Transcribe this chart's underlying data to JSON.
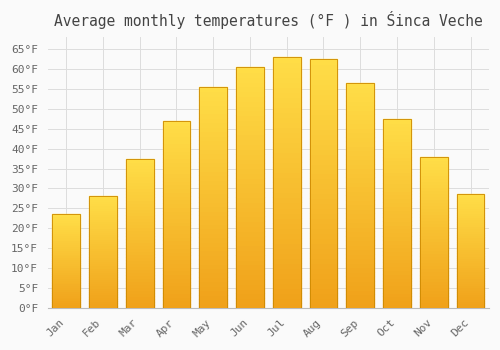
{
  "title": "Average monthly temperatures (°F ) in Śinca Veche",
  "months": [
    "Jan",
    "Feb",
    "Mar",
    "Apr",
    "May",
    "Jun",
    "Jul",
    "Aug",
    "Sep",
    "Oct",
    "Nov",
    "Dec"
  ],
  "values": [
    23.5,
    28.0,
    37.5,
    47.0,
    55.5,
    60.5,
    63.0,
    62.5,
    56.5,
    47.5,
    38.0,
    28.5
  ],
  "bar_color_bottom": "#F0A020",
  "bar_color_top": "#FFD84D",
  "bar_edge_color": "#CC8800",
  "background_color": "#FAFAFA",
  "grid_color": "#DDDDDD",
  "tick_label_color": "#666666",
  "title_color": "#444444",
  "ylim": [
    0,
    68
  ],
  "yticks": [
    0,
    5,
    10,
    15,
    20,
    25,
    30,
    35,
    40,
    45,
    50,
    55,
    60,
    65
  ],
  "title_fontsize": 10.5,
  "tick_fontsize": 8,
  "font_family": "monospace",
  "bar_width": 0.75
}
